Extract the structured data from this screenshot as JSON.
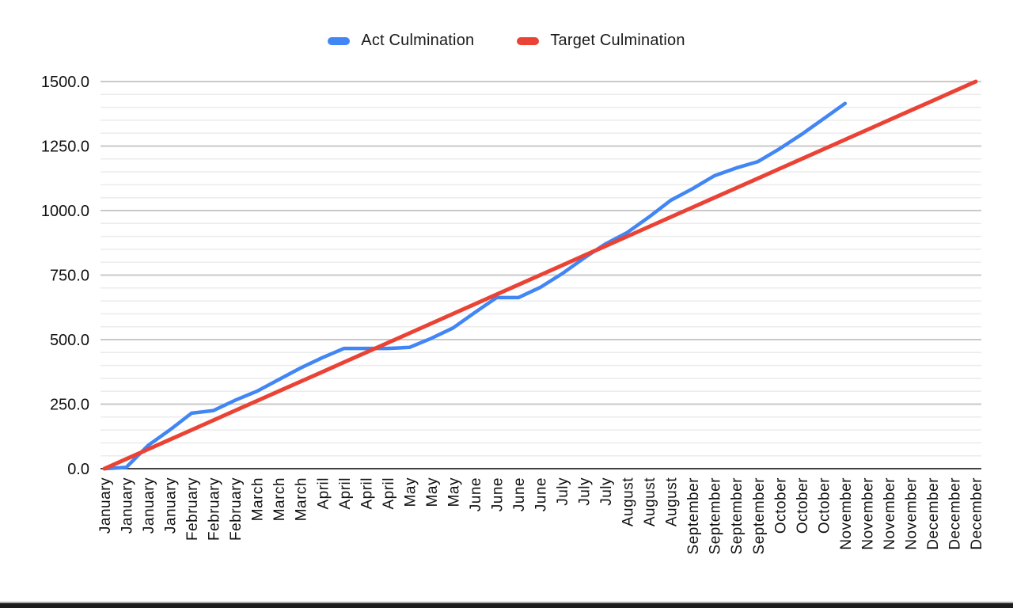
{
  "legend": {
    "items": [
      {
        "label": "Act Culmination",
        "color": "#4285F4"
      },
      {
        "label": "Target Culmination",
        "color": "#EA4335"
      }
    ]
  },
  "chart_data": {
    "type": "line",
    "title": "",
    "xlabel": "",
    "ylabel": "",
    "ylim": [
      0,
      1500
    ],
    "y_major_step": 250,
    "y_minor_step": 50,
    "y_tick_labels": [
      "0.0",
      "250.0",
      "500.0",
      "750.0",
      "1000.0",
      "1250.0",
      "1500.0"
    ],
    "grid": "horizontal-only",
    "legend_position": "top",
    "categories": [
      "January",
      "January",
      "January",
      "January",
      "February",
      "February",
      "February",
      "March",
      "March",
      "March",
      "April",
      "April",
      "April",
      "April",
      "May",
      "May",
      "May",
      "June",
      "June",
      "June",
      "June",
      "July",
      "July",
      "July",
      "August",
      "August",
      "August",
      "September",
      "September",
      "September",
      "September",
      "October",
      "October",
      "October",
      "November",
      "November",
      "November",
      "November",
      "December",
      "December",
      "December"
    ],
    "series": [
      {
        "name": "Act Culmination",
        "color": "#4285F4",
        "values": [
          0,
          5,
          90,
          150,
          215,
          225,
          265,
          300,
          345,
          390,
          430,
          466,
          466,
          466,
          470,
          505,
          545,
          605,
          663,
          663,
          702,
          755,
          815,
          871,
          915,
          975,
          1040,
          1085,
          1135,
          1165,
          1190,
          1240,
          1295,
          1355,
          1415,
          null,
          null,
          null,
          null,
          null,
          null
        ]
      },
      {
        "name": "Target Culmination",
        "color": "#EA4335",
        "values": [
          0,
          37.5,
          75,
          112.5,
          150,
          187.5,
          225,
          262.5,
          300,
          337.5,
          375,
          412.5,
          450,
          487.5,
          525,
          562.5,
          600,
          637.5,
          675,
          712.5,
          750,
          787.5,
          825,
          862.5,
          900,
          937.5,
          975,
          1012.5,
          1050,
          1087.5,
          1125,
          1162.5,
          1200,
          1237.5,
          1275,
          1312.5,
          1350,
          1387.5,
          1425,
          1462.5,
          1500
        ]
      }
    ]
  }
}
